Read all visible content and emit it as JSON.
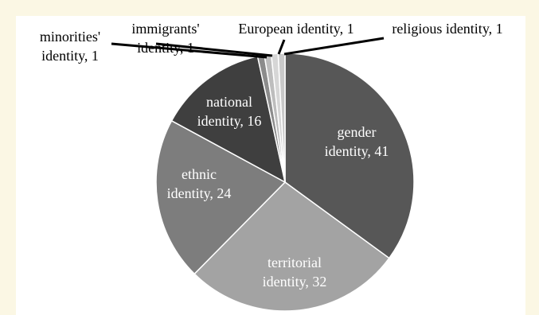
{
  "chart_data": {
    "type": "pie",
    "title": "",
    "slices": [
      {
        "name": "gender identity",
        "value": 41,
        "color": "#575757",
        "label_lines": [
          "gender",
          "identity, 41"
        ],
        "label_color": "#ffffff"
      },
      {
        "name": "territorial identity",
        "value": 32,
        "color": "#a3a3a3",
        "label_lines": [
          "territorial",
          "identity, 32"
        ],
        "label_color": "#ffffff"
      },
      {
        "name": "ethnic identity",
        "value": 24,
        "color": "#7d7d7d",
        "label_lines": [
          "ethnic",
          "identity, 24"
        ],
        "label_color": "#ffffff"
      },
      {
        "name": "national identity",
        "value": 16,
        "color": "#3f3f3f",
        "label_lines": [
          "national",
          "identity, 16"
        ],
        "label_color": "#ffffff"
      },
      {
        "name": "minorities' identity",
        "value": 1,
        "color": "#8c8c8c",
        "label_lines": [
          "minorities'",
          "identity, 1"
        ],
        "label_color": "#000000"
      },
      {
        "name": "immigrants' identity",
        "value": 1,
        "color": "#bdbdbd",
        "label_lines": [
          "immigrants'",
          "identity, 1"
        ],
        "label_color": "#000000"
      },
      {
        "name": "European identity",
        "value": 1,
        "color": "#d6d6d6",
        "label_lines": [
          "European identity, 1"
        ],
        "label_color": "#000000"
      },
      {
        "name": "religious identity",
        "value": 1,
        "color": "#c9c9c9",
        "label_lines": [
          "religious identity, 1"
        ],
        "label_color": "#000000"
      }
    ]
  }
}
